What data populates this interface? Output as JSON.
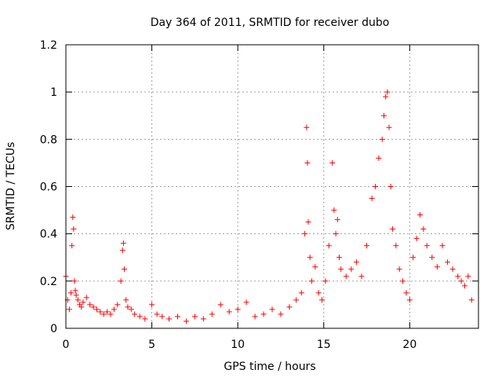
{
  "chart_data": {
    "type": "scatter",
    "title": "Day 364 of 2011, SRMTID for receiver dubo",
    "xlabel": "GPS time / hours",
    "ylabel": "SRMTID / TECUs",
    "xlim": [
      0,
      24
    ],
    "ylim": [
      0,
      1.2
    ],
    "x_ticks": [
      0,
      5,
      10,
      15,
      20
    ],
    "y_ticks": [
      0,
      0.2,
      0.4,
      0.6,
      0.8,
      1,
      1.2
    ],
    "x_tick_labels": [
      "0",
      "5",
      "10",
      "15",
      "20"
    ],
    "y_tick_labels": [
      "0",
      "0.2",
      "0.4",
      "0.6",
      "0.8",
      "1",
      "1.2"
    ],
    "grid": true,
    "marker": "+",
    "series": [
      {
        "name": "SRMTID",
        "color": "#ff0000",
        "x": [
          0.0,
          0.1,
          0.2,
          0.3,
          0.35,
          0.4,
          0.45,
          0.5,
          0.55,
          0.6,
          0.7,
          0.8,
          0.9,
          1.0,
          1.2,
          1.4,
          1.6,
          1.8,
          2.0,
          2.2,
          2.4,
          2.6,
          2.8,
          3.0,
          3.2,
          3.3,
          3.35,
          3.4,
          3.5,
          3.6,
          3.8,
          4.0,
          4.3,
          4.6,
          5.0,
          5.3,
          5.6,
          6.0,
          6.5,
          7.0,
          7.5,
          8.0,
          8.5,
          9.0,
          9.5,
          10.0,
          10.5,
          11.0,
          11.5,
          12.0,
          12.5,
          13.0,
          13.4,
          13.7,
          13.9,
          14.0,
          14.05,
          14.1,
          14.2,
          14.3,
          14.5,
          14.7,
          14.9,
          15.1,
          15.3,
          15.5,
          15.6,
          15.7,
          15.8,
          15.9,
          16.0,
          16.3,
          16.6,
          16.9,
          17.2,
          17.5,
          17.8,
          18.0,
          18.2,
          18.4,
          18.5,
          18.6,
          18.7,
          18.8,
          18.9,
          19.0,
          19.2,
          19.4,
          19.6,
          19.8,
          20.0,
          20.2,
          20.4,
          20.6,
          20.8,
          21.0,
          21.3,
          21.6,
          21.9,
          22.2,
          22.5,
          22.8,
          23.0,
          23.2,
          23.4,
          23.6
        ],
        "y": [
          0.22,
          0.12,
          0.08,
          0.15,
          0.35,
          0.47,
          0.42,
          0.2,
          0.16,
          0.14,
          0.12,
          0.1,
          0.09,
          0.11,
          0.13,
          0.1,
          0.09,
          0.08,
          0.07,
          0.06,
          0.07,
          0.06,
          0.08,
          0.1,
          0.2,
          0.33,
          0.36,
          0.25,
          0.12,
          0.09,
          0.08,
          0.06,
          0.05,
          0.04,
          0.1,
          0.06,
          0.05,
          0.04,
          0.05,
          0.03,
          0.05,
          0.04,
          0.06,
          0.1,
          0.07,
          0.08,
          0.11,
          0.05,
          0.06,
          0.08,
          0.06,
          0.09,
          0.12,
          0.15,
          0.4,
          0.85,
          0.7,
          0.45,
          0.3,
          0.2,
          0.26,
          0.15,
          0.12,
          0.2,
          0.35,
          0.7,
          0.5,
          0.4,
          0.46,
          0.3,
          0.25,
          0.22,
          0.25,
          0.28,
          0.22,
          0.35,
          0.55,
          0.6,
          0.72,
          0.8,
          0.9,
          0.98,
          1.0,
          0.85,
          0.6,
          0.42,
          0.35,
          0.25,
          0.2,
          0.15,
          0.12,
          0.3,
          0.38,
          0.48,
          0.42,
          0.35,
          0.3,
          0.26,
          0.35,
          0.28,
          0.25,
          0.22,
          0.2,
          0.18,
          0.22,
          0.12
        ]
      }
    ]
  }
}
